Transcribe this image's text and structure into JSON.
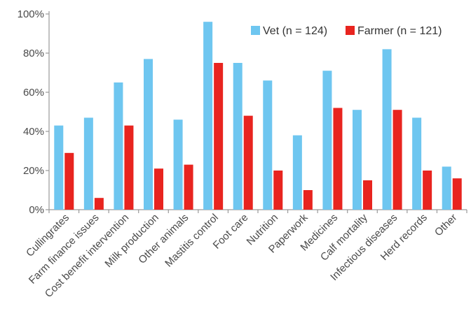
{
  "chart_data": {
    "type": "bar",
    "categories": [
      "Cullingrates",
      "Farm finance issues",
      "Cost benefit intervention",
      "Milk production",
      "Other animals",
      "Mastitis control",
      "Foot care",
      "Nutrition",
      "Paperwork",
      "Medicines",
      "Calf mortality",
      "Infectious diseases",
      "Herd records",
      "Other"
    ],
    "series": [
      {
        "name": "Vet (n = 124)",
        "color": "#6ec6f0",
        "values": [
          43,
          47,
          65,
          77,
          46,
          96,
          75,
          66,
          38,
          71,
          51,
          82,
          47,
          22
        ]
      },
      {
        "name": "Farmer (n = 121)",
        "color": "#e8241f",
        "values": [
          29,
          6,
          43,
          21,
          23,
          75,
          48,
          20,
          10,
          52,
          15,
          51,
          20,
          16
        ]
      }
    ],
    "ylim": [
      0,
      100
    ],
    "yticks": [
      "0%",
      "20%",
      "40%",
      "60%",
      "80%",
      "100%"
    ],
    "ytick_values": [
      0,
      20,
      40,
      60,
      80,
      100
    ],
    "grid": false,
    "legend_position": "top-right",
    "title": "",
    "xlabel": "",
    "ylabel": ""
  }
}
